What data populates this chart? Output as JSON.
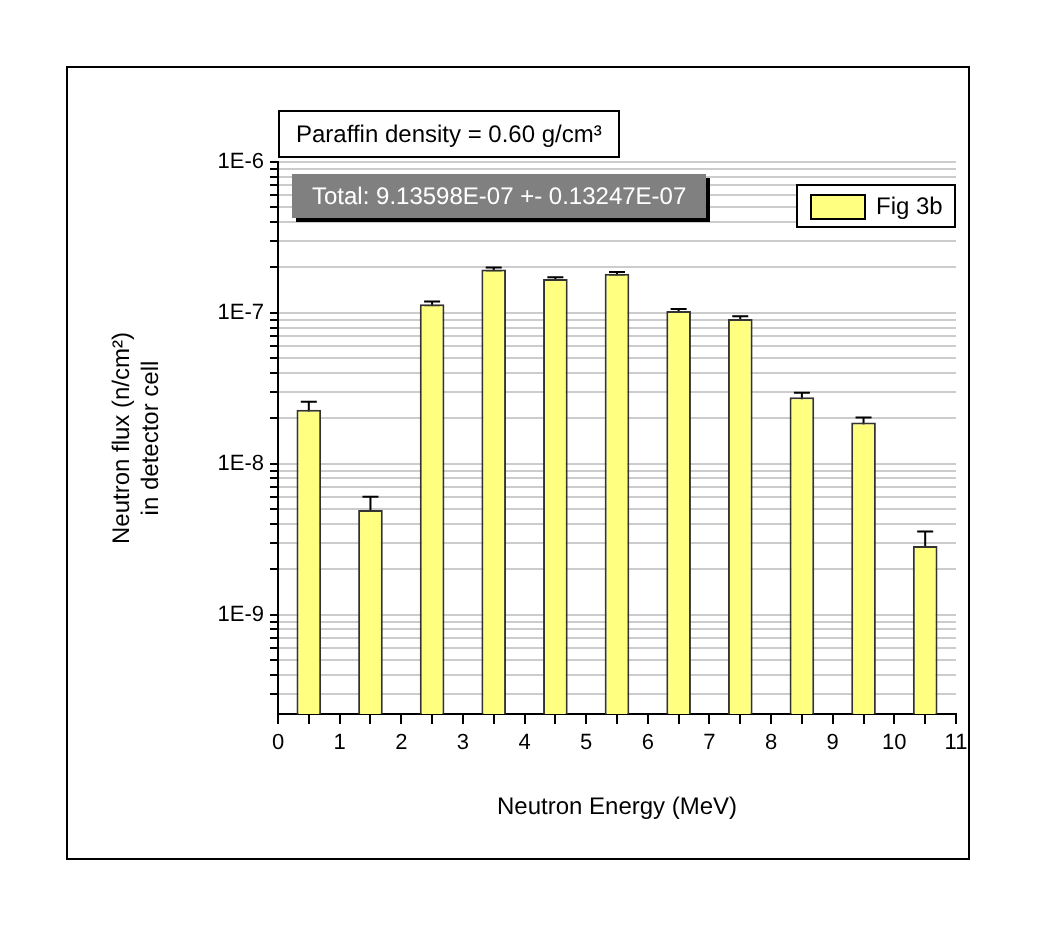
{
  "chart_data": {
    "type": "bar",
    "xlabel": "Neutron Energy (MeV)",
    "ylabel": "Neutron flux (n/cm²)\nin detector cell",
    "annotations": [
      "Paraffin density = 0.60 g/cm³",
      "Total: 9.13598E-07 +- 0.13247E-07"
    ],
    "x": [
      0.5,
      1.5,
      2.5,
      3.5,
      4.5,
      5.5,
      6.5,
      7.5,
      8.5,
      9.5,
      10.5
    ],
    "series": [
      {
        "name": "Fig 3b",
        "color": "#ffff80",
        "values": [
          2.28e-08,
          4.95e-09,
          1.14e-07,
          1.94e-07,
          1.68e-07,
          1.82e-07,
          1.03e-07,
          9.1e-08,
          2.76e-08,
          1.88e-08,
          2.86e-09
        ],
        "errors": [
          3e-09,
          1.1e-09,
          5e-09,
          6e-09,
          4e-09,
          5e-09,
          3e-09,
          4e-09,
          2e-09,
          1.5e-09,
          7e-10
        ]
      }
    ],
    "log": "y",
    "xlim": [
      0,
      11
    ],
    "xticks": [
      0,
      {
        "value": 0.5,
        "label": null
      },
      1,
      {
        "value": 1.5,
        "label": null
      },
      2,
      {
        "value": 2.5,
        "label": null
      },
      3,
      {
        "value": 3.5,
        "label": null
      },
      4,
      {
        "value": 4.5,
        "label": null
      },
      5,
      {
        "value": 5.5,
        "label": null
      },
      6,
      {
        "value": 6.5,
        "label": null
      },
      7,
      {
        "value": 7.5,
        "label": null
      },
      8,
      {
        "value": 8.5,
        "label": null
      },
      9,
      {
        "value": 9.5,
        "label": null
      },
      10,
      {
        "value": 10.5,
        "label": null
      },
      11
    ],
    "ylim": [
      2.2e-10,
      1e-06
    ],
    "yticks": [
      {
        "value": 3e-10,
        "label": null
      },
      {
        "value": 4e-10,
        "label": null
      },
      {
        "value": 5e-10,
        "label": null
      },
      {
        "value": 6e-10,
        "label": null
      },
      {
        "value": 7e-10,
        "label": null
      },
      {
        "value": 8e-10,
        "label": null
      },
      {
        "value": 9e-10,
        "label": null
      },
      {
        "value": 1e-09,
        "label": "1E-9"
      },
      {
        "value": 2e-09,
        "label": null
      },
      {
        "value": 3e-09,
        "label": null
      },
      {
        "value": 4e-09,
        "label": null
      },
      {
        "value": 5e-09,
        "label": null
      },
      {
        "value": 6e-09,
        "label": null
      },
      {
        "value": 7e-09,
        "label": null
      },
      {
        "value": 8e-09,
        "label": null
      },
      {
        "value": 9e-09,
        "label": null
      },
      {
        "value": 1e-08,
        "label": "1E-8"
      },
      {
        "value": 2e-08,
        "label": null
      },
      {
        "value": 3e-08,
        "label": null
      },
      {
        "value": 4e-08,
        "label": null
      },
      {
        "value": 5e-08,
        "label": null
      },
      {
        "value": 6e-08,
        "label": null
      },
      {
        "value": 7e-08,
        "label": null
      },
      {
        "value": 8e-08,
        "label": null
      },
      {
        "value": 9e-08,
        "label": null
      },
      {
        "value": 1e-07,
        "label": "1E-7"
      },
      {
        "value": 2e-07,
        "label": null
      },
      {
        "value": 3e-07,
        "label": null
      },
      {
        "value": 4e-07,
        "label": null
      },
      {
        "value": 5e-07,
        "label": null
      },
      {
        "value": 6e-07,
        "label": null
      },
      {
        "value": 7e-07,
        "label": null
      },
      {
        "value": 8e-07,
        "label": null
      },
      {
        "value": 9e-07,
        "label": null
      },
      {
        "value": 1e-06,
        "label": "1E-6"
      }
    ],
    "grid": "y",
    "legend": "top right"
  }
}
